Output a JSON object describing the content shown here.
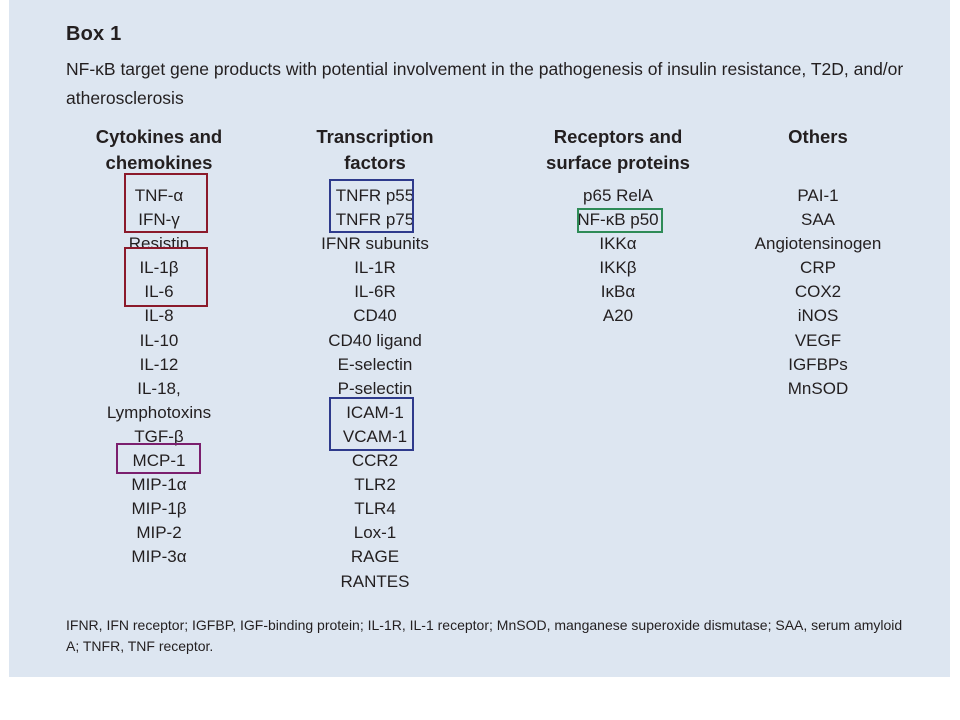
{
  "box": {
    "title": "Box 1",
    "subtitle": "NF-κB target gene products with potential involvement in the pathogenesis of insulin resistance, T2D, and/or atherosclerosis"
  },
  "columns": [
    {
      "header": "Cytokines and\nchemokines",
      "items": [
        "TNF-α",
        "IFN-γ",
        "Resistin",
        "IL-1β",
        "IL-6",
        "IL-8",
        "IL-10",
        "IL-12",
        "IL-18,",
        "Lymphotoxins",
        "TGF-β",
        "MCP-1",
        "MIP-1α",
        "MIP-1β",
        "MIP-2",
        "MIP-3α"
      ]
    },
    {
      "header": "Transcription\nfactors",
      "items": [
        "TNFR p55",
        "TNFR p75",
        "IFNR subunits",
        "IL-1R",
        "IL-6R",
        "CD40",
        "CD40 ligand",
        "E-selectin",
        "P-selectin",
        "ICAM-1",
        "VCAM-1",
        "CCR2",
        "TLR2",
        "TLR4",
        "Lox-1",
        "RAGE",
        "RANTES"
      ]
    },
    {
      "header": "Receptors and\nsurface proteins",
      "items": [
        "p65 RelA",
        "NF-κB p50",
        "IKKα",
        "IKKβ",
        "IκBα",
        "A20"
      ]
    },
    {
      "header": "Others",
      "items": [
        "PAI-1",
        "SAA",
        "Angiotensinogen",
        "CRP",
        "COX2",
        "iNOS",
        "VEGF",
        "IGFBPs",
        "MnSOD"
      ]
    }
  ],
  "highlight_colors": {
    "red": "#8b1a2b",
    "blue": "#2e3a8c",
    "green": "#2e8b57",
    "purple": "#7b1f6e"
  },
  "footnote": "IFNR, IFN receptor; IGFBP, IGF-binding protein; IL-1R, IL-1 receptor; MnSOD, manganese superoxide dismutase; SAA, serum amyloid A; TNFR, TNF receptor."
}
